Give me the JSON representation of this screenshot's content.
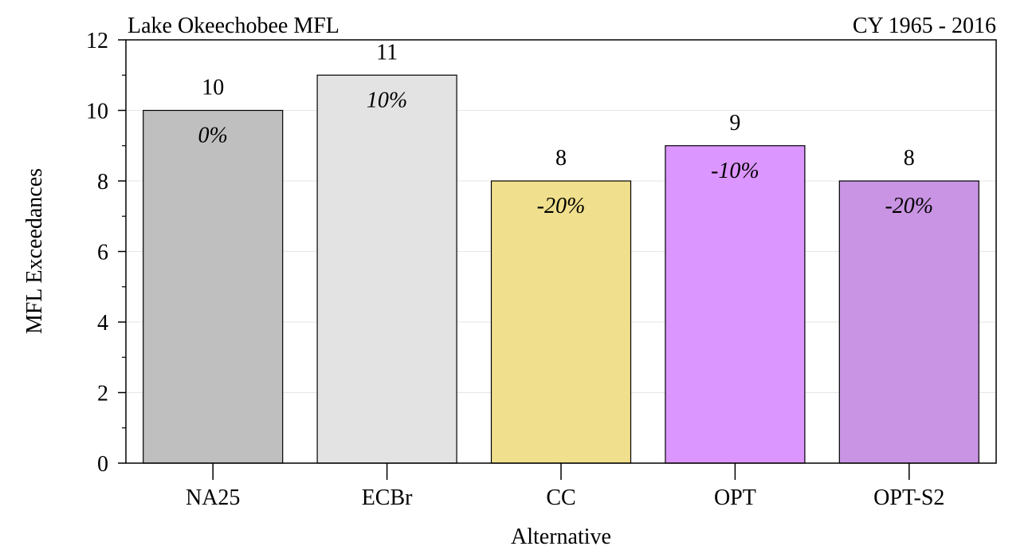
{
  "chart_data": {
    "type": "bar",
    "title_left": "Lake Okeechobee MFL",
    "title_right": "CY 1965 - 2016",
    "xlabel": "Alternative",
    "ylabel": "MFL Exceedances",
    "ylim": [
      0,
      12
    ],
    "yticks": [
      0,
      2,
      4,
      6,
      8,
      10,
      12
    ],
    "grid": true,
    "categories": [
      "NA25",
      "ECBr",
      "CC",
      "OPT",
      "OPT-S2"
    ],
    "values": [
      10,
      11,
      8,
      9,
      8
    ],
    "value_labels": [
      "10",
      "11",
      "8",
      "9",
      "8"
    ],
    "percent_labels": [
      "0%",
      "10%",
      "-20%",
      "-10%",
      "-20%"
    ],
    "colors": [
      "#bfbfbf",
      "#e3e3e3",
      "#f0df8c",
      "#dc96ff",
      "#c994e3"
    ]
  }
}
